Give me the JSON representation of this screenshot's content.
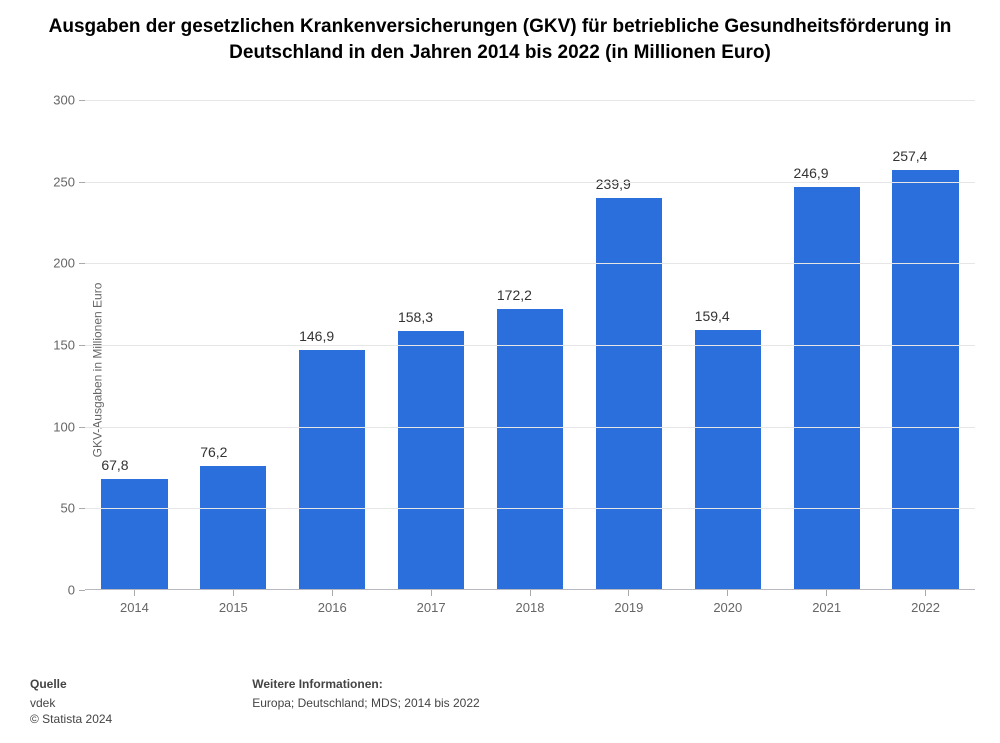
{
  "chart": {
    "type": "bar",
    "title": "Ausgaben der gesetzlichen Krankenversicherungen (GKV) für betriebliche Gesundheitsförderung in Deutschland in den Jahren 2014 bis 2022 (in Millionen Euro)",
    "title_fontsize": 19,
    "title_color": "#000000",
    "ylabel": "GKV-Ausgaben in Millionen Euro",
    "ylabel_fontsize": 12,
    "ylabel_color": "#666666",
    "categories": [
      "2014",
      "2015",
      "2016",
      "2017",
      "2018",
      "2019",
      "2020",
      "2021",
      "2022"
    ],
    "values": [
      67.8,
      76.2,
      146.9,
      158.3,
      172.2,
      239.9,
      159.4,
      246.9,
      257.4
    ],
    "value_labels": [
      "67,8",
      "76,2",
      "146,9",
      "158,3",
      "172,2",
      "239,9",
      "159,4",
      "246,9",
      "257,4"
    ],
    "bar_color": "#2a6fdb",
    "value_label_fontsize": 14,
    "value_label_color": "#333333",
    "xtick_fontsize": 13,
    "xtick_color": "#666666",
    "ytick_fontsize": 13,
    "ytick_color": "#666666",
    "ylim": [
      0,
      300
    ],
    "yticks": [
      0,
      50,
      100,
      150,
      200,
      250,
      300
    ],
    "grid_color": "#e6e6e6",
    "axis_color": "#b8b8c0",
    "background_color": "#ffffff",
    "bar_width_ratio": 0.67
  },
  "footer": {
    "source_heading": "Quelle",
    "source_line1": "vdek",
    "copyright": "© Statista 2024",
    "info_heading": "Weitere Informationen:",
    "info_line": "Europa; Deutschland; MDS; 2014 bis 2022",
    "fontsize": 12,
    "color": "#444444"
  }
}
